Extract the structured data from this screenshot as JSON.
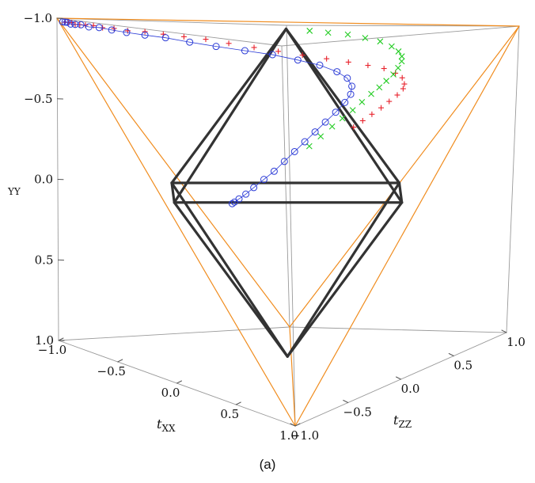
{
  "caption": "(a)",
  "chart_data": {
    "type": "scatter",
    "projection": "3d",
    "title": "",
    "axes": {
      "txx": {
        "label_main": "t",
        "label_sub": "XX",
        "range": [
          -1,
          1
        ],
        "ticks": [
          "1.0",
          "0.5",
          "0.0",
          "−0.5",
          "−1.0"
        ]
      },
      "tzz": {
        "label_main": "t",
        "label_sub": "ZZ",
        "range": [
          -1,
          1
        ],
        "ticks": [
          "1.0",
          "0.5",
          "0.0",
          "−0.5",
          "−1.0"
        ]
      },
      "tyy": {
        "label_main": "",
        "label_sub": "YY",
        "range": [
          -1,
          1
        ],
        "ticks": [
          "−1.0",
          "−0.5",
          "0.0",
          "0.5",
          "1.0"
        ]
      }
    },
    "tetrahedron_color": "#f08c1e",
    "octahedron_color": "#333333",
    "series_colors": {
      "plus": "#e8202a",
      "cross": "#22cc22",
      "circle": "#2b3bd6"
    },
    "series": [
      {
        "marker": "plus",
        "points": [
          [
            -0.98,
            -0.95,
            -0.98
          ],
          [
            -0.96,
            -0.94,
            -0.98
          ],
          [
            -0.94,
            -0.93,
            -0.98
          ],
          [
            -0.92,
            -0.92,
            -0.97
          ],
          [
            -0.9,
            -0.9,
            -0.97
          ],
          [
            -0.87,
            -0.88,
            -0.97
          ],
          [
            -0.83,
            -0.85,
            -0.97
          ],
          [
            -0.78,
            -0.82,
            -0.96
          ],
          [
            -0.72,
            -0.78,
            -0.96
          ],
          [
            -0.65,
            -0.73,
            -0.95
          ],
          [
            -0.56,
            -0.67,
            -0.95
          ],
          [
            -0.47,
            -0.6,
            -0.94
          ],
          [
            -0.37,
            -0.52,
            -0.93
          ],
          [
            -0.27,
            -0.43,
            -0.92
          ],
          [
            -0.17,
            -0.33,
            -0.9
          ],
          [
            -0.07,
            -0.21,
            -0.88
          ],
          [
            0.02,
            -0.09,
            -0.86
          ],
          [
            0.1,
            0.04,
            -0.84
          ],
          [
            0.17,
            0.18,
            -0.82
          ],
          [
            0.23,
            0.31,
            -0.8
          ],
          [
            0.27,
            0.44,
            -0.78
          ],
          [
            0.3,
            0.55,
            -0.76
          ],
          [
            0.31,
            0.64,
            -0.73
          ],
          [
            0.31,
            0.7,
            -0.7
          ],
          [
            0.3,
            0.73,
            -0.66
          ],
          [
            0.28,
            0.74,
            -0.63
          ],
          [
            0.25,
            0.72,
            -0.59
          ],
          [
            0.22,
            0.68,
            -0.55
          ],
          [
            0.19,
            0.64,
            -0.51
          ],
          [
            0.16,
            0.59,
            -0.47
          ],
          [
            0.13,
            0.54,
            -0.43
          ],
          [
            0.1,
            0.49,
            -0.39
          ]
        ]
      },
      {
        "marker": "cross",
        "points": [
          [
            0.3,
            -0.1,
            -0.98
          ],
          [
            0.38,
            -0.02,
            -0.97
          ],
          [
            0.45,
            0.08,
            -0.96
          ],
          [
            0.5,
            0.18,
            -0.94
          ],
          [
            0.53,
            0.28,
            -0.92
          ],
          [
            0.54,
            0.37,
            -0.89
          ],
          [
            0.53,
            0.44,
            -0.86
          ],
          [
            0.51,
            0.49,
            -0.83
          ],
          [
            0.48,
            0.52,
            -0.8
          ],
          [
            0.44,
            0.53,
            -0.76
          ],
          [
            0.4,
            0.53,
            -0.72
          ],
          [
            0.36,
            0.51,
            -0.68
          ],
          [
            0.32,
            0.49,
            -0.64
          ],
          [
            0.28,
            0.46,
            -0.6
          ],
          [
            0.24,
            0.42,
            -0.55
          ],
          [
            0.2,
            0.38,
            -0.5
          ],
          [
            0.16,
            0.33,
            -0.45
          ],
          [
            0.12,
            0.28,
            -0.4
          ],
          [
            0.08,
            0.22,
            -0.34
          ],
          [
            0.04,
            0.16,
            -0.28
          ]
        ]
      },
      {
        "marker": "circle",
        "points": [
          [
            -0.98,
            -0.97,
            -0.98
          ],
          [
            -0.97,
            -0.96,
            -0.98
          ],
          [
            -0.96,
            -0.95,
            -0.98
          ],
          [
            -0.94,
            -0.94,
            -0.97
          ],
          [
            -0.92,
            -0.92,
            -0.97
          ],
          [
            -0.89,
            -0.9,
            -0.97
          ],
          [
            -0.85,
            -0.87,
            -0.96
          ],
          [
            -0.8,
            -0.83,
            -0.96
          ],
          [
            -0.74,
            -0.78,
            -0.95
          ],
          [
            -0.67,
            -0.72,
            -0.94
          ],
          [
            -0.58,
            -0.65,
            -0.93
          ],
          [
            -0.48,
            -0.57,
            -0.92
          ],
          [
            -0.37,
            -0.47,
            -0.9
          ],
          [
            -0.25,
            -0.36,
            -0.88
          ],
          [
            -0.13,
            -0.23,
            -0.86
          ],
          [
            -0.02,
            -0.1,
            -0.84
          ],
          [
            0.08,
            0.02,
            -0.81
          ],
          [
            0.16,
            0.13,
            -0.78
          ],
          [
            0.22,
            0.22,
            -0.74
          ],
          [
            0.25,
            0.28,
            -0.7
          ],
          [
            0.26,
            0.31,
            -0.65
          ],
          [
            0.25,
            0.31,
            -0.6
          ],
          [
            0.22,
            0.29,
            -0.55
          ],
          [
            0.18,
            0.25,
            -0.49
          ],
          [
            0.14,
            0.2,
            -0.43
          ],
          [
            0.1,
            0.15,
            -0.37
          ],
          [
            0.06,
            0.1,
            -0.31
          ],
          [
            0.02,
            0.05,
            -0.25
          ],
          [
            -0.02,
            0.0,
            -0.19
          ],
          [
            -0.06,
            -0.05,
            -0.13
          ],
          [
            -0.1,
            -0.1,
            -0.08
          ],
          [
            -0.14,
            -0.15,
            -0.03
          ],
          [
            -0.17,
            -0.19,
            0.01
          ],
          [
            -0.2,
            -0.22,
            0.04
          ],
          [
            -0.22,
            -0.24,
            0.06
          ],
          [
            -0.23,
            -0.25,
            0.07
          ]
        ]
      }
    ]
  }
}
